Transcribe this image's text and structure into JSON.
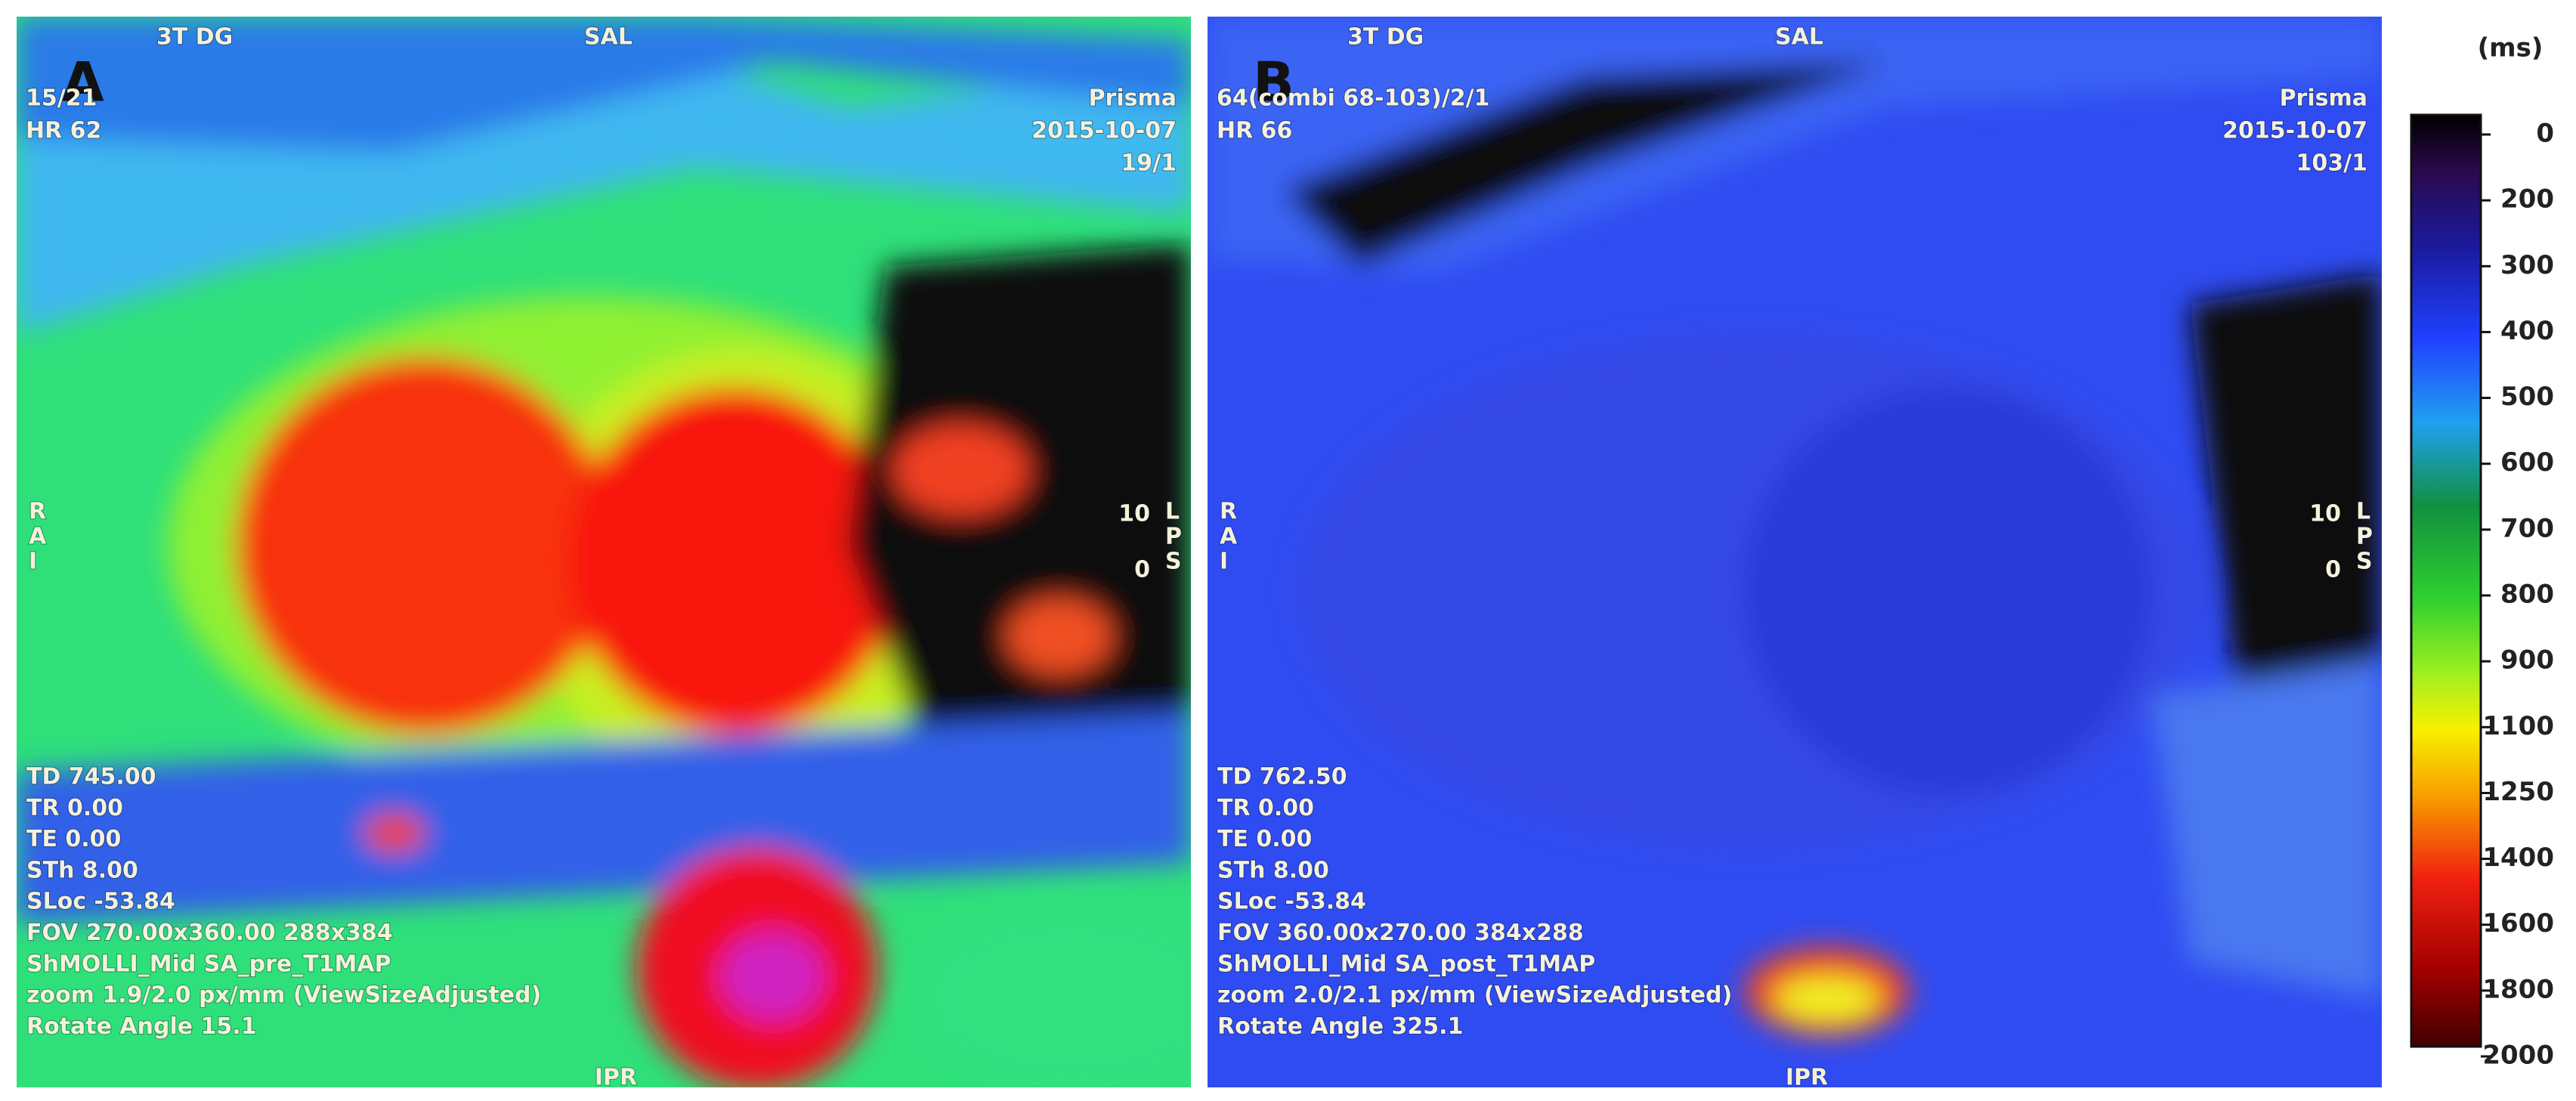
{
  "panels": [
    {
      "label": "A",
      "header_left": "3T DG",
      "header_center": "SAL",
      "info_left": [
        "15/21",
        "HR 62"
      ],
      "info_right": [
        "Prisma",
        "2015-10-07",
        "19/1"
      ],
      "orient_left": [
        "R",
        "A",
        "I"
      ],
      "orient_right_num": [
        "10",
        "0"
      ],
      "orient_right": [
        "L",
        "P",
        "S"
      ],
      "bottom_center": "IPR",
      "params": [
        "TD 745.00",
        "TR 0.00",
        "TE 0.00",
        "STh 8.00",
        "SLoc -53.84",
        "FOV 270.00x360.00 288x384",
        "ShMOLLI_Mid SA_pre_T1MAP",
        "zoom 1.9/2.0 px/mm (ViewSizeAdjusted)",
        "Rotate Angle 15.1"
      ]
    },
    {
      "label": "B",
      "header_left": "3T DG",
      "header_center": "SAL",
      "info_left": [
        "64(combi 68-103)/2/1",
        "HR 66"
      ],
      "info_right": [
        "Prisma",
        "2015-10-07",
        "103/1"
      ],
      "orient_left": [
        "R",
        "A",
        "I"
      ],
      "orient_right_num": [
        "10",
        "0"
      ],
      "orient_right": [
        "L",
        "P",
        "S"
      ],
      "bottom_center": "IPR",
      "params": [
        "TD 762.50",
        "TR 0.00",
        "TE 0.00",
        "STh 8.00",
        "SLoc -53.84",
        "FOV 360.00x270.00 384x288",
        "ShMOLLI_Mid SA_post_T1MAP",
        "zoom 2.0/2.1 px/mm (ViewSizeAdjusted)",
        "Rotate Angle 325.1"
      ]
    }
  ],
  "colorbar": {
    "unit": "(ms)",
    "ticks": [
      0,
      200,
      300,
      400,
      500,
      600,
      700,
      800,
      900,
      1100,
      1250,
      1400,
      1600,
      1800,
      2000
    ]
  }
}
